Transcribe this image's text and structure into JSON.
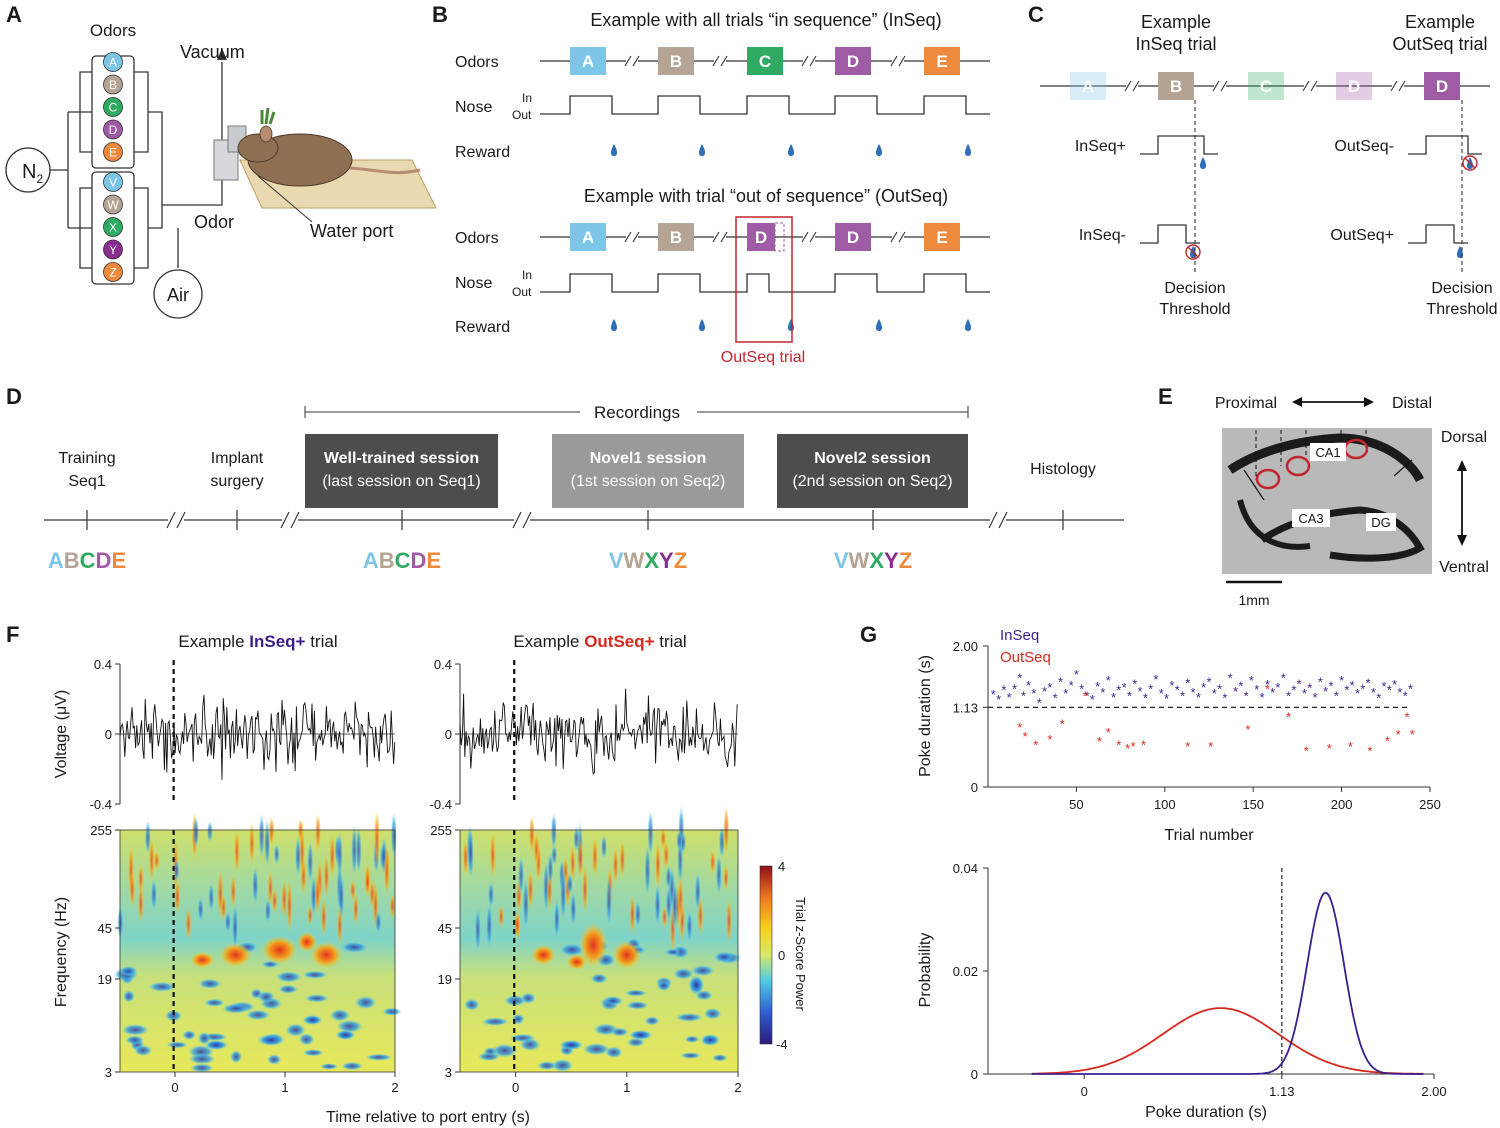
{
  "panel_letters": [
    "A",
    "B",
    "C",
    "D",
    "E",
    "F",
    "G"
  ],
  "colors": {
    "A": "#7cc5e8",
    "B": "#b5a393",
    "C": "#2eaa63",
    "D": "#a05ba7",
    "E": "#ee8a3e",
    "V": "#7cc5e8",
    "W": "#b5a393",
    "X": "#2eaa63",
    "Y": "#8a2d91",
    "Z": "#ee8a3e",
    "inseq": "#3d1f8c",
    "outseq": "#d6281d",
    "water": "#2d6fb8",
    "box": "#c0272d"
  },
  "panelA": {
    "odors_title": "Odors",
    "n2_base": "N",
    "n2_sub": "2",
    "odors_top": [
      "A",
      "B",
      "C",
      "D",
      "E"
    ],
    "odors_bottom": [
      "V",
      "W",
      "X",
      "Y",
      "Z"
    ],
    "vacuum": "Vacuum",
    "odor": "Odor",
    "air": "Air",
    "water_port": "Water port"
  },
  "panelB": {
    "title_inseq": "Example with all trials “in sequence” (InSeq)",
    "title_outseq": "Example with trial “out of sequence” (OutSeq)",
    "row_odors": "Odors",
    "row_nose": "Nose",
    "row_reward": "Reward",
    "in_label": "In",
    "out_label": "Out",
    "seq_inseq": [
      "A",
      "B",
      "C",
      "D",
      "E"
    ],
    "seq_outseq": [
      "A",
      "B",
      "D",
      "D",
      "E"
    ],
    "outseq_caption": "OutSeq trial"
  },
  "panelC": {
    "title_inseq": "Example\nInSeq trial",
    "title_outseq": "Example\nOutSeq trial",
    "seq": [
      "A",
      "B",
      "C",
      "D",
      "D"
    ],
    "labels": [
      "InSeq+",
      "InSeq-",
      "OutSeq-",
      "OutSeq+"
    ],
    "threshold": "Decision\nThreshold"
  },
  "panelD": {
    "recordings": "Recordings",
    "timeline": [
      {
        "label": "Training\nSeq1",
        "letters": "ABCDE"
      },
      {
        "label": "Implant\nsurgery",
        "letters": ""
      },
      {
        "label": "Well-trained session\n(last session on Seq1)",
        "letters": "ABCDE"
      },
      {
        "label": "Novel1 session\n(1st session on Seq2)",
        "letters": "VWXYZ"
      },
      {
        "label": "Novel2 session\n(2nd session on Seq2)",
        "letters": "VWXYZ"
      },
      {
        "label": "Histology",
        "letters": ""
      }
    ]
  },
  "panelE": {
    "proximal": "Proximal",
    "distal": "Distal",
    "dorsal": "Dorsal",
    "ventral": "Ventral",
    "ca1": "CA1",
    "ca3": "CA3",
    "dg": "DG",
    "scale": "1mm"
  },
  "panelF": {
    "title_left_pre": "Example ",
    "title_left_key": "InSeq+",
    "title_left_post": " trial",
    "title_right_pre": "Example ",
    "title_right_key": "OutSeq+",
    "title_right_post": " trial",
    "voltage_label": "Voltage (μV)",
    "voltage_ticks": [
      "0.4",
      "0",
      "-0.4"
    ],
    "freq_label": "Frequency (Hz)",
    "freq_ticks": [
      "255",
      "45",
      "19",
      "3"
    ],
    "time_ticks": [
      "0",
      "1",
      "2"
    ],
    "xlabel": "Time relative to port entry (s)",
    "colorbar_label": "Trial z-Score Power",
    "colorbar_ticks": [
      "4",
      "0",
      "-4"
    ]
  },
  "chart_data": [
    {
      "type": "scatter",
      "title": "",
      "xlabel": "Trial number",
      "ylabel": "Poke duration (s)",
      "xlim": [
        0,
        250
      ],
      "ylim": [
        0,
        2.0
      ],
      "xticks": [
        50,
        100,
        150,
        200,
        250
      ],
      "yticks": [
        0,
        1.13,
        2.0
      ],
      "ytick_labels": [
        "0",
        "1.13",
        "2.00"
      ],
      "threshold": 1.13,
      "legend": [
        "InSeq",
        "OutSeq"
      ],
      "series": [
        {
          "name": "InSeq",
          "points": [
            [
              3,
              1.32
            ],
            [
              6,
              1.25
            ],
            [
              9,
              1.38
            ],
            [
              12,
              1.28
            ],
            [
              15,
              1.4
            ],
            [
              18,
              1.55
            ],
            [
              20,
              1.3
            ],
            [
              23,
              1.45
            ],
            [
              26,
              1.33
            ],
            [
              29,
              1.2
            ],
            [
              32,
              1.36
            ],
            [
              35,
              1.42
            ],
            [
              38,
              1.27
            ],
            [
              41,
              1.5
            ],
            [
              44,
              1.33
            ],
            [
              47,
              1.45
            ],
            [
              50,
              1.6
            ],
            [
              53,
              1.4
            ],
            [
              56,
              1.3
            ],
            [
              59,
              1.25
            ],
            [
              62,
              1.43
            ],
            [
              65,
              1.35
            ],
            [
              68,
              1.52
            ],
            [
              71,
              1.28
            ],
            [
              74,
              1.38
            ],
            [
              77,
              1.42
            ],
            [
              80,
              1.3
            ],
            [
              83,
              1.47
            ],
            [
              86,
              1.36
            ],
            [
              89,
              1.27
            ],
            [
              92,
              1.4
            ],
            [
              95,
              1.53
            ],
            [
              98,
              1.33
            ],
            [
              101,
              1.26
            ],
            [
              104,
              1.45
            ],
            [
              107,
              1.38
            ],
            [
              110,
              1.3
            ],
            [
              113,
              1.48
            ],
            [
              116,
              1.35
            ],
            [
              119,
              1.28
            ],
            [
              122,
              1.42
            ],
            [
              125,
              1.5
            ],
            [
              128,
              1.33
            ],
            [
              131,
              1.4
            ],
            [
              134,
              1.27
            ],
            [
              137,
              1.55
            ],
            [
              140,
              1.36
            ],
            [
              143,
              1.44
            ],
            [
              146,
              1.3
            ],
            [
              149,
              1.52
            ],
            [
              152,
              1.39
            ],
            [
              155,
              1.28
            ],
            [
              158,
              1.46
            ],
            [
              161,
              1.35
            ],
            [
              164,
              1.42
            ],
            [
              167,
              1.55
            ],
            [
              170,
              1.3
            ],
            [
              173,
              1.38
            ],
            [
              176,
              1.47
            ],
            [
              179,
              1.33
            ],
            [
              182,
              1.41
            ],
            [
              185,
              1.28
            ],
            [
              188,
              1.5
            ],
            [
              191,
              1.36
            ],
            [
              194,
              1.44
            ],
            [
              197,
              1.3
            ],
            [
              200,
              1.52
            ],
            [
              203,
              1.38
            ],
            [
              206,
              1.45
            ],
            [
              209,
              1.33
            ],
            [
              212,
              1.4
            ],
            [
              215,
              1.48
            ],
            [
              218,
              1.35
            ],
            [
              221,
              1.27
            ],
            [
              224,
              1.43
            ],
            [
              227,
              1.38
            ],
            [
              230,
              1.46
            ],
            [
              233,
              1.35
            ],
            [
              236,
              1.3
            ],
            [
              239,
              1.4
            ]
          ]
        },
        {
          "name": "OutSeq",
          "points": [
            [
              18,
              0.85
            ],
            [
              21,
              0.72
            ],
            [
              27,
              0.6
            ],
            [
              35,
              0.68
            ],
            [
              42,
              0.9
            ],
            [
              55,
              1.3
            ],
            [
              63,
              0.65
            ],
            [
              68,
              0.78
            ],
            [
              74,
              0.6
            ],
            [
              79,
              0.55
            ],
            [
              82,
              0.58
            ],
            [
              88,
              0.6
            ],
            [
              113,
              0.58
            ],
            [
              126,
              0.58
            ],
            [
              147,
              0.82
            ],
            [
              158,
              1.4
            ],
            [
              170,
              1.0
            ],
            [
              180,
              0.52
            ],
            [
              193,
              0.55
            ],
            [
              205,
              0.58
            ],
            [
              216,
              0.52
            ],
            [
              226,
              0.66
            ],
            [
              232,
              0.75
            ],
            [
              237,
              1.0
            ],
            [
              240,
              0.75
            ]
          ]
        }
      ]
    },
    {
      "type": "line",
      "title": "",
      "xlabel": "Poke duration (s)",
      "ylabel": "Probability",
      "xlim": [
        -0.55,
        2.0
      ],
      "ylim": [
        0,
        0.04
      ],
      "xticks": [
        0,
        1.13,
        2.0
      ],
      "xtick_labels": [
        "0",
        "1.13",
        "2.00"
      ],
      "yticks": [
        0,
        0.02,
        0.04
      ],
      "ytick_labels": [
        "0",
        "0.02",
        "0.04"
      ],
      "threshold": 1.13,
      "series": [
        {
          "name": "OutSeq",
          "distribution": "gaussian",
          "mean": 0.78,
          "sd": 0.33,
          "peak": 0.0128
        },
        {
          "name": "InSeq",
          "distribution": "gaussian",
          "mean": 1.38,
          "sd": 0.105,
          "peak": 0.0352
        }
      ]
    }
  ]
}
